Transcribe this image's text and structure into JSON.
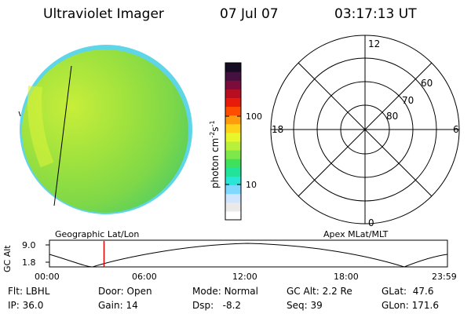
{
  "header": {
    "title": "Ultraviolet Imager",
    "date": "07 Jul 07",
    "time": "03:17:13 UT"
  },
  "colorbar": {
    "unit_label": "photon cm",
    "unit_exp1": "-2",
    "unit_mid": "s",
    "unit_exp2": "-1",
    "tick_100": "100",
    "tick_10": "10",
    "colors": [
      "#ffffff",
      "#eaeaea",
      "#cfe4ff",
      "#7fd8ff",
      "#29e6d6",
      "#22e39a",
      "#3fe05b",
      "#7ee84a",
      "#b9f03b",
      "#e8f62c",
      "#ffd21a",
      "#ff9b0d",
      "#ff4d00",
      "#e81a0a",
      "#b80e22",
      "#7c0c3c",
      "#44103f",
      "#150b22"
    ]
  },
  "polar": {
    "labels": {
      "top": "12",
      "bottom": "0",
      "left": "18",
      "right": "6"
    },
    "lat_labels": [
      "60",
      "70",
      "80"
    ]
  },
  "timeline": {
    "left_label": "Geographic Lat/Lon",
    "right_label": "Apex MLat/MLT",
    "axis_title": "GC Alt",
    "y_top": "9.0",
    "y_bottom": "1.8",
    "x_ticks": [
      "00:00",
      "06:00",
      "12:00",
      "18:00",
      "23:59"
    ],
    "marker_time_hours": 3.29,
    "marker_color": "#e00000"
  },
  "info": {
    "flt_label": "Flt:",
    "flt_value": "LBHL",
    "ip_label": "IP:",
    "ip_value": "36.0",
    "door_label": "Door:",
    "door_value": "Open",
    "gain_label": "Gain:",
    "gain_value": "14",
    "mode_label": "Mode:",
    "mode_value": "Normal",
    "dsp_label": "Dsp:",
    "dsp_value": "-8.2",
    "gcalt_label": "GC Alt:",
    "gcalt_value": "2.2 Re",
    "seq_label": "Seq:",
    "seq_value": "39",
    "glat_label": "GLat:",
    "glat_value": "47.6",
    "glon_label": "GLon:",
    "glon_value": "171.6"
  }
}
